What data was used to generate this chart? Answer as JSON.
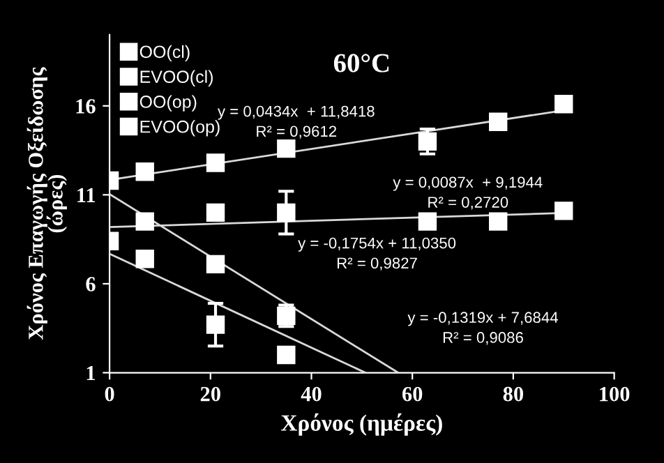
{
  "chart_data": {
    "type": "scatter",
    "title": "60°C",
    "xlabel": "Χρόνος (ημέρες)",
    "ylabel": "Χρόνος Επαγωγής Οξείδωσης\n(ώρες)",
    "xlim": [
      0,
      100
    ],
    "ylim": [
      1,
      20
    ],
    "xticks": [
      0,
      20,
      40,
      60,
      80,
      100
    ],
    "yticks": [
      1,
      6,
      11,
      16
    ],
    "grid": false,
    "legend": "top left",
    "marker": "square",
    "series": [
      {
        "name": "OO(cl)",
        "color": "#ffffff",
        "x": [
          7,
          21,
          35,
          63,
          77,
          90
        ],
        "values": [
          9.5,
          10.0,
          10.0,
          9.5,
          9.5,
          10.1
        ],
        "errors": [
          0.2,
          0.3,
          1.2,
          null,
          null,
          null
        ]
      },
      {
        "name": "EVOO(cl)",
        "color": "#ffffff",
        "x": [
          0,
          7,
          21,
          35,
          63,
          77,
          90
        ],
        "values": [
          11.8,
          12.3,
          12.8,
          13.6,
          14.0,
          15.1,
          16.1
        ],
        "errors": [
          null,
          null,
          null,
          null,
          0.7,
          null,
          null
        ]
      },
      {
        "name": "OO(op)",
        "color": "#ffffff",
        "x": [
          21,
          35
        ],
        "values": [
          7.1,
          4.2
        ],
        "errors": [
          0.1,
          0.6
        ]
      },
      {
        "name": "EVOO(op)",
        "color": "#ffffff",
        "x": [
          0,
          7,
          21,
          35
        ],
        "values": [
          8.4,
          7.4,
          3.7,
          2.0
        ],
        "errors": [
          null,
          0.2,
          1.2,
          0.2
        ]
      },
      {
        "type": "line",
        "color": "#d9d9d9",
        "marker": "none",
        "x": [
          0,
          90
        ],
        "values": [
          11.84,
          15.75
        ]
      },
      {
        "type": "line",
        "color": "#d9d9d9",
        "marker": "none",
        "x": [
          0,
          90
        ],
        "values": [
          9.19,
          9.98
        ]
      },
      {
        "type": "line",
        "color": "#d9d9d9",
        "marker": "none",
        "x": [
          0,
          57.2
        ],
        "values": [
          11.04,
          1.0
        ]
      },
      {
        "type": "line",
        "color": "#d9d9d9",
        "marker": "none",
        "x": [
          0,
          50.7
        ],
        "values": [
          7.68,
          1.0
        ]
      }
    ],
    "annotations": [
      "y = 0,0434x  + 11,8418\nR² = 0,9612",
      "y = 0,0087x  + 9,1944\nR² = 0,2720",
      "y = -0,1754x + 11,0350\nR² = 0,9827",
      "y = -0,1319x + 7,6844\nR² = 0,9086"
    ]
  }
}
